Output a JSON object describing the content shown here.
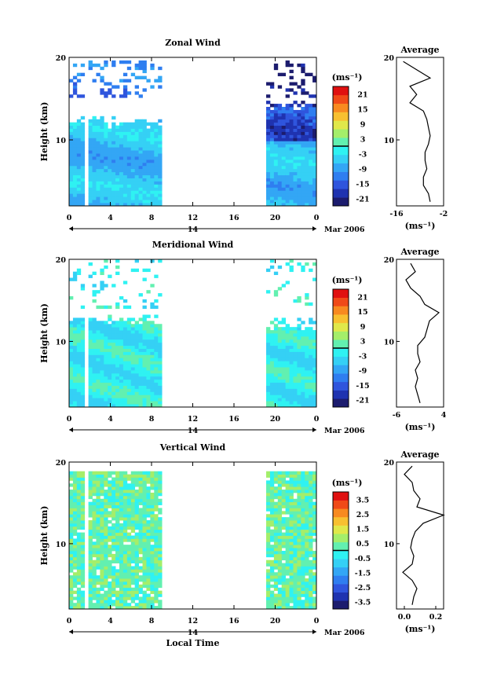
{
  "figure": {
    "xlabel": "Local Time",
    "date_label": "Mar 2006",
    "day_label": "14",
    "ylabel": "Height (km)",
    "units": "(ms⁻¹)",
    "avg_title": "Average"
  },
  "colormap": [
    "#1c1c6e",
    "#1f33b0",
    "#2f55dd",
    "#2f7ef0",
    "#33a6f5",
    "#35d0f5",
    "#2ff2f2",
    "#62f0b0",
    "#a4ee6a",
    "#e0e84a",
    "#f8c030",
    "#f88a20",
    "#f04a18",
    "#e01010"
  ],
  "chart_data": [
    {
      "type": "heatmap",
      "title": "Zonal Wind",
      "x_ticks": [
        "0",
        "4",
        "8",
        "12",
        "16",
        "20",
        "0"
      ],
      "x_range_hours": [
        0,
        24
      ],
      "y_ticks": [
        "20",
        "10"
      ],
      "y_range_km": [
        2,
        20
      ],
      "gap_hours": [
        8.9,
        19.1
      ],
      "clim": [
        -24,
        24
      ],
      "colorbar_ticks": [
        "21",
        "15",
        "9",
        "3",
        "-3",
        "-9",
        "-15",
        "-21"
      ],
      "profile_ticks": [
        "-16",
        "-2"
      ],
      "profile_xlim": [
        -16,
        -2
      ],
      "profile": {
        "height_km": [
          2.5,
          3.5,
          4.5,
          5.5,
          6.5,
          7.5,
          8.5,
          9.5,
          10.5,
          11.5,
          12.5,
          13.5,
          14.5,
          15.5,
          16.5,
          17.5,
          18.5,
          19.5
        ],
        "value": [
          -6,
          -6.5,
          -8,
          -8,
          -7,
          -7.5,
          -7.5,
          -6.5,
          -6,
          -6.5,
          -7,
          -8,
          -12,
          -10,
          -12,
          -6,
          -10,
          -14
        ]
      }
    },
    {
      "type": "heatmap",
      "title": "Meridional Wind",
      "x_ticks": [
        "0",
        "4",
        "8",
        "12",
        "16",
        "20",
        "0"
      ],
      "x_range_hours": [
        0,
        24
      ],
      "y_ticks": [
        "20",
        "10"
      ],
      "y_range_km": [
        2,
        20
      ],
      "gap_hours": [
        8.9,
        19.1
      ],
      "clim": [
        -24,
        24
      ],
      "colorbar_ticks": [
        "21",
        "15",
        "9",
        "3",
        "-3",
        "-9",
        "-15",
        "-21"
      ],
      "profile_ticks": [
        "-6",
        "4"
      ],
      "profile_xlim": [
        -6,
        4
      ],
      "profile": {
        "height_km": [
          2.5,
          3.5,
          4.5,
          5.5,
          6.5,
          7.5,
          8.5,
          9.5,
          10.5,
          11.5,
          12.5,
          13.5,
          14.5,
          15.5,
          16.5,
          17.5,
          18.5,
          19.5
        ],
        "value": [
          -1,
          -1.5,
          -2,
          -1.5,
          -2,
          -1,
          -1.5,
          -1.5,
          0,
          0.5,
          1,
          3,
          0,
          -1,
          -3,
          -4,
          -2,
          -3
        ]
      }
    },
    {
      "type": "heatmap",
      "title": "Vertical Wind",
      "x_ticks": [
        "0",
        "4",
        "8",
        "12",
        "16",
        "20",
        "0"
      ],
      "x_range_hours": [
        0,
        24
      ],
      "y_ticks": [
        "20",
        "10"
      ],
      "y_range_km": [
        2,
        20
      ],
      "gap_hours": [
        8.9,
        19.1
      ],
      "clim": [
        -4,
        4
      ],
      "colorbar_ticks": [
        "3.5",
        "2.5",
        "1.5",
        "0.5",
        "-0.5",
        "-1.5",
        "-2.5",
        "-3.5"
      ],
      "profile_ticks": [
        "0.0",
        "0.2"
      ],
      "profile_xlim": [
        -0.05,
        0.25
      ],
      "profile": {
        "height_km": [
          2.5,
          3.5,
          4.5,
          5.5,
          6.5,
          7.5,
          8.5,
          9.5,
          10.5,
          11.5,
          12.5,
          13.5,
          14.5,
          15.5,
          16.5,
          17.5,
          18.5,
          19.5
        ],
        "value": [
          0.05,
          0.06,
          0.08,
          0.05,
          -0.01,
          0.05,
          0.06,
          0.04,
          0.05,
          0.07,
          0.12,
          0.25,
          0.08,
          0.1,
          0.06,
          0.05,
          0.0,
          0.05
        ]
      }
    }
  ]
}
